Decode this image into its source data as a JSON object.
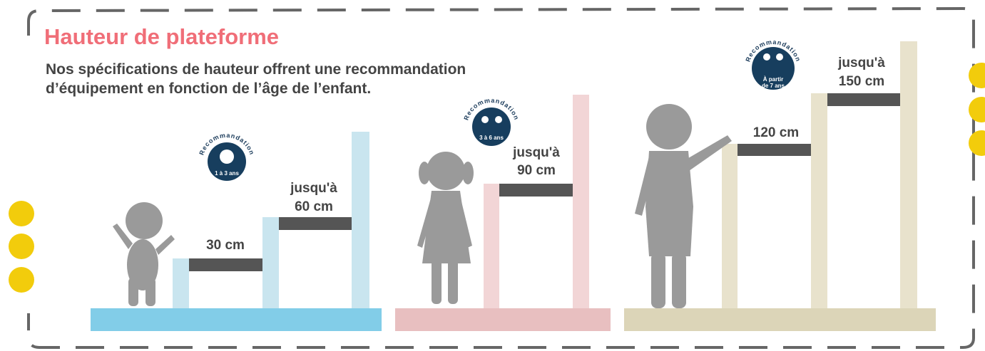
{
  "header": {
    "title": "Hauteur de plateforme",
    "subtitle": [
      "Nos spécifications de hauteur offrent une recommandation",
      "d’équipement en fonction de l’âge de l’enfant."
    ]
  },
  "groups": [
    {
      "badge": {
        "label": "Recommandation",
        "age": [
          "1 à 3 ans"
        ]
      },
      "heights": [
        {
          "label": [
            "30 cm"
          ]
        },
        {
          "label": [
            "jusqu'à",
            "60 cm"
          ]
        }
      ]
    },
    {
      "badge": {
        "label": "Recommandation",
        "age": [
          "3 à 6 ans"
        ]
      },
      "heights": [
        {
          "label": [
            "jusqu'à",
            "90 cm"
          ]
        }
      ]
    },
    {
      "badge": {
        "label": "Recommandation",
        "age": [
          "À partir",
          "de 7 ans"
        ]
      },
      "heights": [
        {
          "label": [
            "120 cm"
          ]
        },
        {
          "label": [
            "jusqu'à",
            "150 cm"
          ]
        }
      ]
    }
  ]
}
